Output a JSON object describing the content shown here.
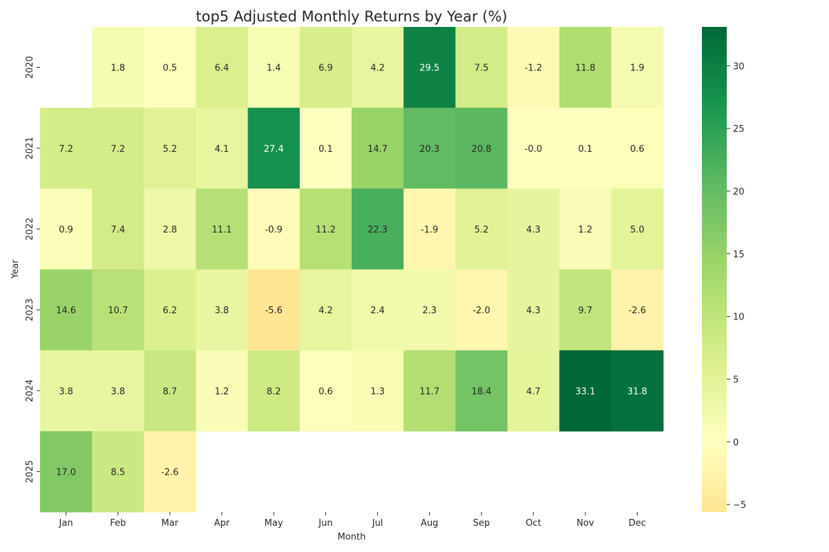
{
  "chart_data": {
    "type": "heatmap",
    "title": "top5 Adjusted Monthly Returns by Year (%)",
    "xlabel": "Month",
    "ylabel": "Year",
    "columns": [
      "Jan",
      "Feb",
      "Mar",
      "Apr",
      "May",
      "Jun",
      "Jul",
      "Aug",
      "Sep",
      "Oct",
      "Nov",
      "Dec"
    ],
    "rows": [
      "2020",
      "2021",
      "2022",
      "2023",
      "2024",
      "2025"
    ],
    "values": [
      [
        null,
        1.8,
        0.5,
        6.4,
        1.4,
        6.9,
        4.2,
        29.5,
        7.5,
        -1.2,
        11.8,
        1.9
      ],
      [
        7.2,
        7.2,
        5.2,
        4.1,
        27.4,
        0.1,
        14.7,
        20.3,
        20.8,
        -0.0,
        0.1,
        0.6
      ],
      [
        0.9,
        7.4,
        2.8,
        11.1,
        -0.9,
        11.2,
        22.3,
        -1.9,
        5.2,
        4.3,
        1.2,
        5.0
      ],
      [
        14.6,
        10.7,
        6.2,
        3.8,
        -5.6,
        4.2,
        2.4,
        2.3,
        -2.0,
        4.3,
        9.7,
        -2.6
      ],
      [
        3.8,
        3.8,
        8.7,
        1.2,
        8.2,
        0.6,
        1.3,
        11.7,
        18.4,
        4.7,
        33.1,
        31.8
      ],
      [
        17.0,
        8.5,
        -2.6,
        null,
        null,
        null,
        null,
        null,
        null,
        null,
        null,
        null
      ]
    ],
    "value_format": "one decimal place",
    "colormap": "RdYlGn",
    "color_center": 0,
    "vmin": -5.6,
    "vmax": 33.1,
    "colorbar_ticks": [
      -5,
      0,
      5,
      10,
      15,
      20,
      25,
      30
    ],
    "colorbar_tick_labels": [
      "−5",
      "0",
      "5",
      "10",
      "15",
      "20",
      "25",
      "30"
    ],
    "colorbar_position": "right",
    "grid": false
  }
}
